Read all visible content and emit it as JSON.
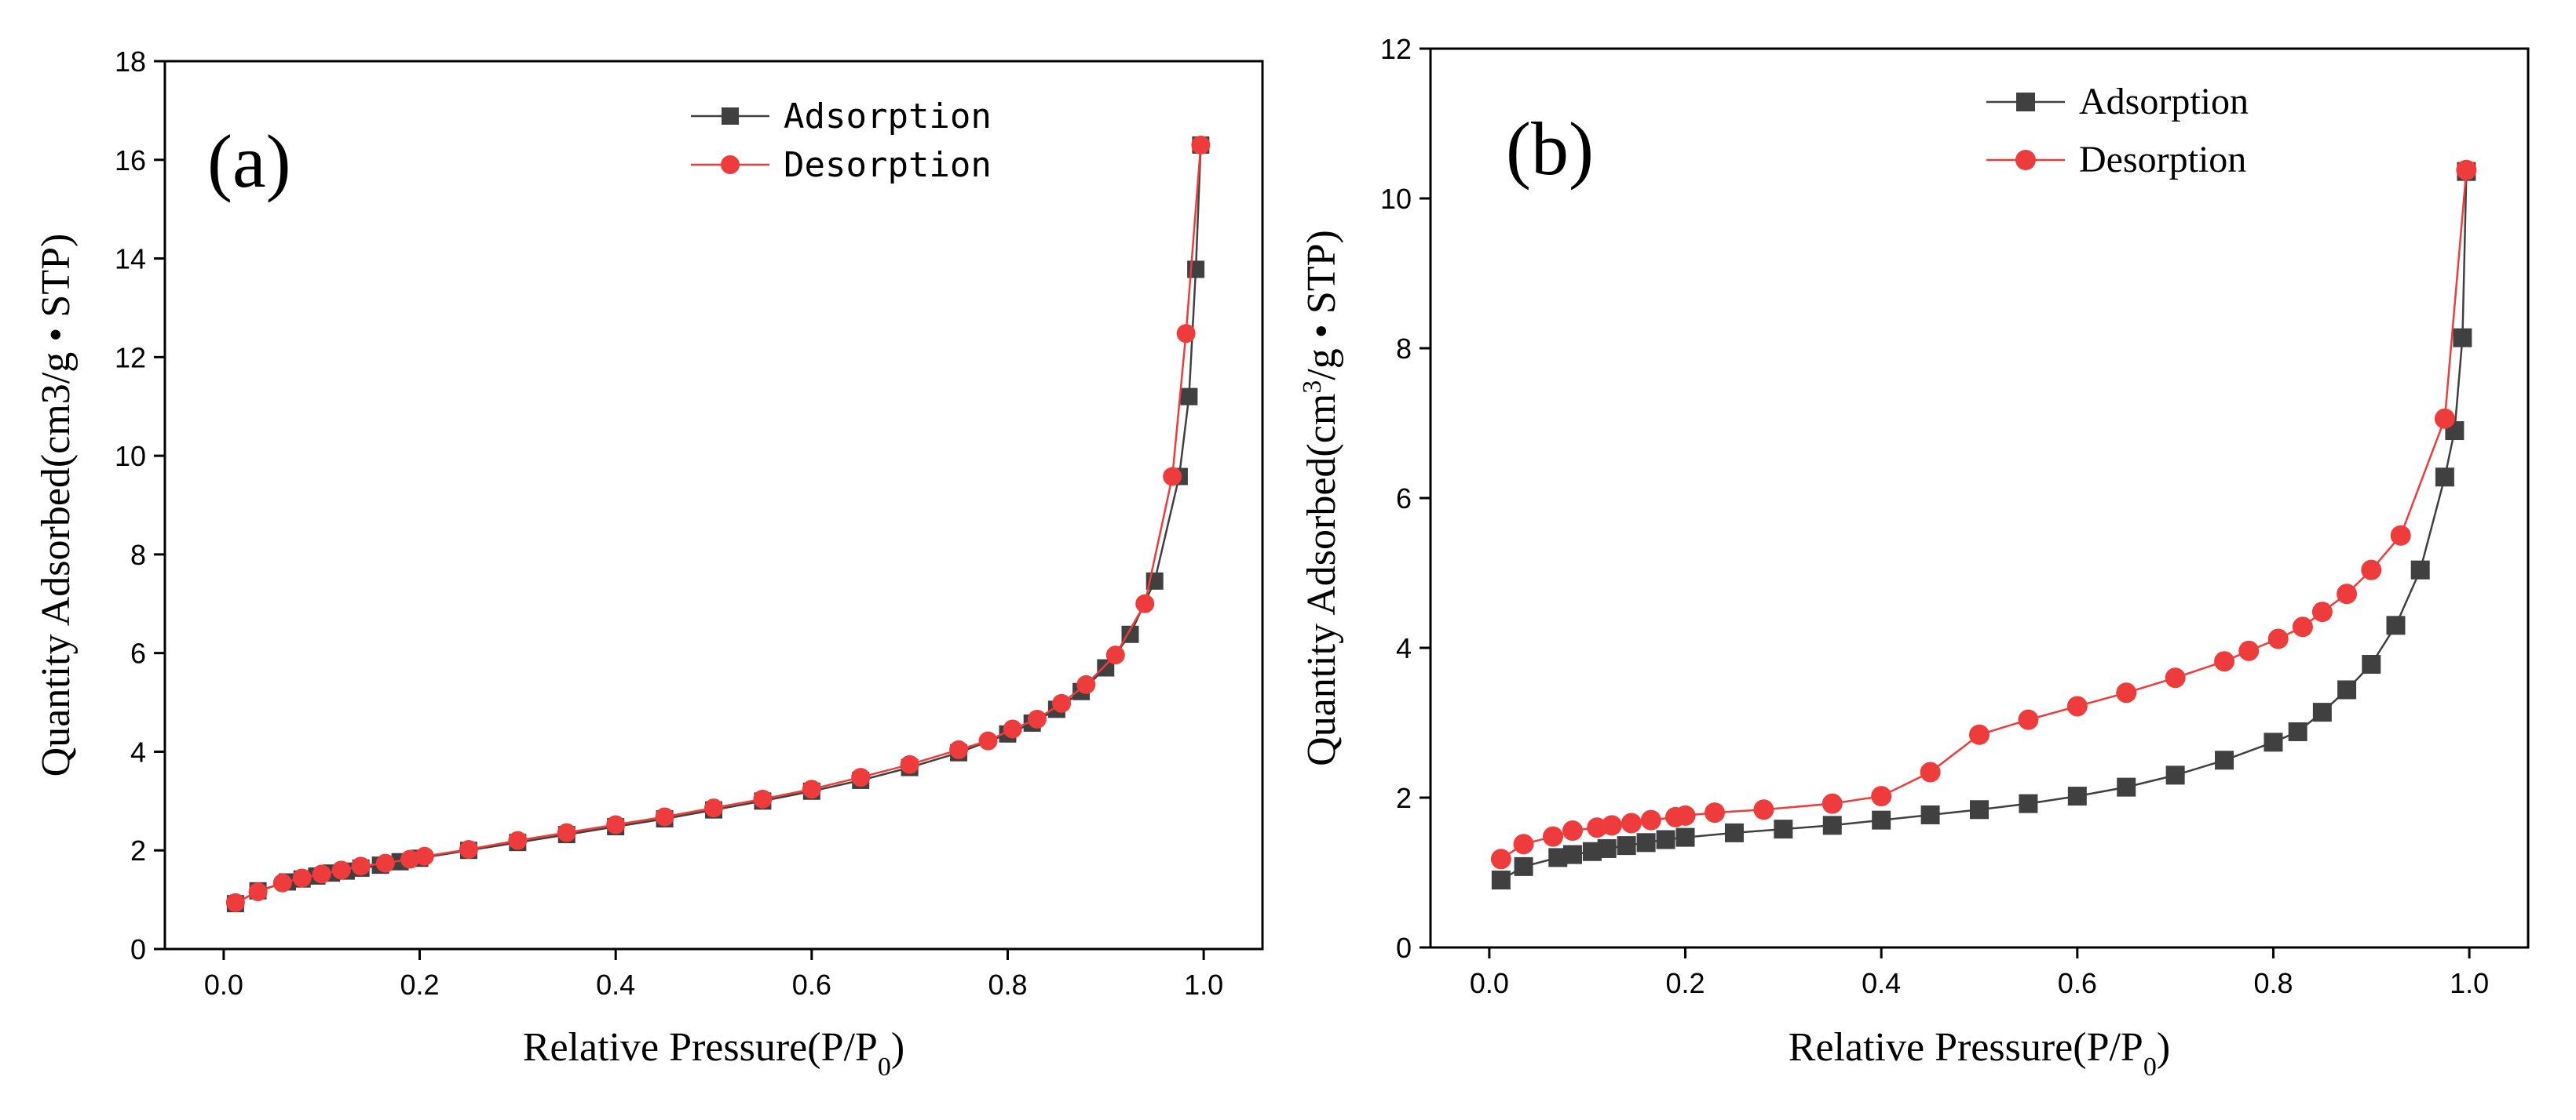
{
  "chart_data": [
    {
      "type": "line",
      "panel_label": "(a)",
      "xlabel": "Relative Pressure(P/P0)",
      "xlabel_main": "Relative Pressure(P/P",
      "xlabel_sub": "0",
      "xlabel_close": ")",
      "ylabel": "Quantity Adsorbed(cm3/g • STP)",
      "xlim": [
        -0.06,
        1.06
      ],
      "ylim": [
        0,
        18
      ],
      "xticks": [
        0.0,
        0.2,
        0.4,
        0.6,
        0.8,
        1.0
      ],
      "xtick_labels": [
        "0.0",
        "0.2",
        "0.4",
        "0.6",
        "0.8",
        "1.0"
      ],
      "yticks": [
        0,
        2,
        4,
        6,
        8,
        10,
        12,
        14,
        16,
        18
      ],
      "ytick_labels": [
        "0",
        "2",
        "4",
        "6",
        "8",
        "10",
        "12",
        "14",
        "16",
        "18"
      ],
      "legend_position": "top-center",
      "series": [
        {
          "name": "Adsorption",
          "color": "#404040",
          "marker": "square",
          "points": [
            [
              0.012,
              0.92
            ],
            [
              0.035,
              1.18
            ],
            [
              0.065,
              1.36
            ],
            [
              0.08,
              1.42
            ],
            [
              0.095,
              1.48
            ],
            [
              0.11,
              1.54
            ],
            [
              0.125,
              1.58
            ],
            [
              0.14,
              1.64
            ],
            [
              0.16,
              1.7
            ],
            [
              0.18,
              1.77
            ],
            [
              0.2,
              1.84
            ],
            [
              0.25,
              2.0
            ],
            [
              0.3,
              2.16
            ],
            [
              0.35,
              2.32
            ],
            [
              0.4,
              2.48
            ],
            [
              0.45,
              2.64
            ],
            [
              0.5,
              2.82
            ],
            [
              0.55,
              3.0
            ],
            [
              0.6,
              3.2
            ],
            [
              0.65,
              3.42
            ],
            [
              0.7,
              3.68
            ],
            [
              0.75,
              3.98
            ],
            [
              0.8,
              4.36
            ],
            [
              0.825,
              4.58
            ],
            [
              0.85,
              4.86
            ],
            [
              0.875,
              5.22
            ],
            [
              0.9,
              5.7
            ],
            [
              0.925,
              6.38
            ],
            [
              0.95,
              7.46
            ],
            [
              0.975,
              9.58
            ],
            [
              0.985,
              11.2
            ],
            [
              0.992,
              13.78
            ],
            [
              0.997,
              16.3
            ]
          ]
        },
        {
          "name": "Desorption",
          "color": "#ee3b3b",
          "marker": "circle",
          "points": [
            [
              0.997,
              16.3
            ],
            [
              0.982,
              12.48
            ],
            [
              0.968,
              9.58
            ],
            [
              0.94,
              7.0
            ],
            [
              0.91,
              5.96
            ],
            [
              0.88,
              5.36
            ],
            [
              0.855,
              4.98
            ],
            [
              0.83,
              4.66
            ],
            [
              0.805,
              4.46
            ],
            [
              0.78,
              4.22
            ],
            [
              0.75,
              4.04
            ],
            [
              0.7,
              3.74
            ],
            [
              0.65,
              3.48
            ],
            [
              0.6,
              3.24
            ],
            [
              0.55,
              3.04
            ],
            [
              0.5,
              2.86
            ],
            [
              0.45,
              2.68
            ],
            [
              0.4,
              2.52
            ],
            [
              0.35,
              2.36
            ],
            [
              0.3,
              2.2
            ],
            [
              0.25,
              2.02
            ],
            [
              0.205,
              1.88
            ],
            [
              0.19,
              1.82
            ],
            [
              0.165,
              1.74
            ],
            [
              0.14,
              1.68
            ],
            [
              0.12,
              1.6
            ],
            [
              0.1,
              1.52
            ],
            [
              0.08,
              1.44
            ],
            [
              0.06,
              1.34
            ],
            [
              0.035,
              1.16
            ],
            [
              0.012,
              0.94
            ]
          ]
        }
      ]
    },
    {
      "type": "line",
      "panel_label": "(b)",
      "xlabel": "Relative Pressure(P/P0)",
      "xlabel_main": "Relative Pressure(P/P",
      "xlabel_sub": "0",
      "xlabel_close": ")",
      "ylabel": "Quantity Adsorbed(cm3/g • STP)",
      "ylabel_pre": "Quantity Adsorbed(cm",
      "ylabel_sup": "3",
      "ylabel_post": "/g • STP)",
      "xlim": [
        -0.06,
        1.06
      ],
      "ylim": [
        0,
        12
      ],
      "xticks": [
        0.0,
        0.2,
        0.4,
        0.6,
        0.8,
        1.0
      ],
      "xtick_labels": [
        "0.0",
        "0.2",
        "0.4",
        "0.6",
        "0.8",
        "1.0"
      ],
      "yticks": [
        0,
        2,
        4,
        6,
        8,
        10,
        12
      ],
      "ytick_labels": [
        "0",
        "2",
        "4",
        "6",
        "8",
        "10",
        "12"
      ],
      "legend_position": "top-center",
      "series": [
        {
          "name": "Adsorption",
          "color": "#404040",
          "marker": "square",
          "points": [
            [
              0.012,
              0.9
            ],
            [
              0.035,
              1.08
            ],
            [
              0.07,
              1.2
            ],
            [
              0.085,
              1.24
            ],
            [
              0.105,
              1.28
            ],
            [
              0.12,
              1.32
            ],
            [
              0.14,
              1.36
            ],
            [
              0.16,
              1.4
            ],
            [
              0.18,
              1.44
            ],
            [
              0.2,
              1.47
            ],
            [
              0.25,
              1.53
            ],
            [
              0.3,
              1.58
            ],
            [
              0.35,
              1.63
            ],
            [
              0.4,
              1.7
            ],
            [
              0.45,
              1.77
            ],
            [
              0.5,
              1.84
            ],
            [
              0.55,
              1.92
            ],
            [
              0.6,
              2.02
            ],
            [
              0.65,
              2.14
            ],
            [
              0.7,
              2.3
            ],
            [
              0.75,
              2.5
            ],
            [
              0.8,
              2.74
            ],
            [
              0.825,
              2.88
            ],
            [
              0.85,
              3.14
            ],
            [
              0.875,
              3.44
            ],
            [
              0.9,
              3.78
            ],
            [
              0.925,
              4.3
            ],
            [
              0.95,
              5.04
            ],
            [
              0.975,
              6.28
            ],
            [
              0.985,
              6.9
            ],
            [
              0.993,
              8.14
            ],
            [
              0.997,
              10.36
            ]
          ]
        },
        {
          "name": "Desorption",
          "color": "#ee3b3b",
          "marker": "circle",
          "points": [
            [
              0.997,
              10.38
            ],
            [
              0.975,
              7.06
            ],
            [
              0.93,
              5.5
            ],
            [
              0.9,
              5.04
            ],
            [
              0.875,
              4.72
            ],
            [
              0.85,
              4.48
            ],
            [
              0.83,
              4.28
            ],
            [
              0.805,
              4.12
            ],
            [
              0.775,
              3.96
            ],
            [
              0.75,
              3.82
            ],
            [
              0.7,
              3.6
            ],
            [
              0.65,
              3.4
            ],
            [
              0.6,
              3.22
            ],
            [
              0.55,
              3.04
            ],
            [
              0.5,
              2.84
            ],
            [
              0.45,
              2.34
            ],
            [
              0.4,
              2.02
            ],
            [
              0.35,
              1.92
            ],
            [
              0.28,
              1.84
            ],
            [
              0.23,
              1.8
            ],
            [
              0.2,
              1.76
            ],
            [
              0.19,
              1.74
            ],
            [
              0.165,
              1.7
            ],
            [
              0.145,
              1.66
            ],
            [
              0.125,
              1.63
            ],
            [
              0.11,
              1.6
            ],
            [
              0.085,
              1.56
            ],
            [
              0.065,
              1.48
            ],
            [
              0.035,
              1.38
            ],
            [
              0.012,
              1.18
            ]
          ]
        }
      ]
    }
  ]
}
